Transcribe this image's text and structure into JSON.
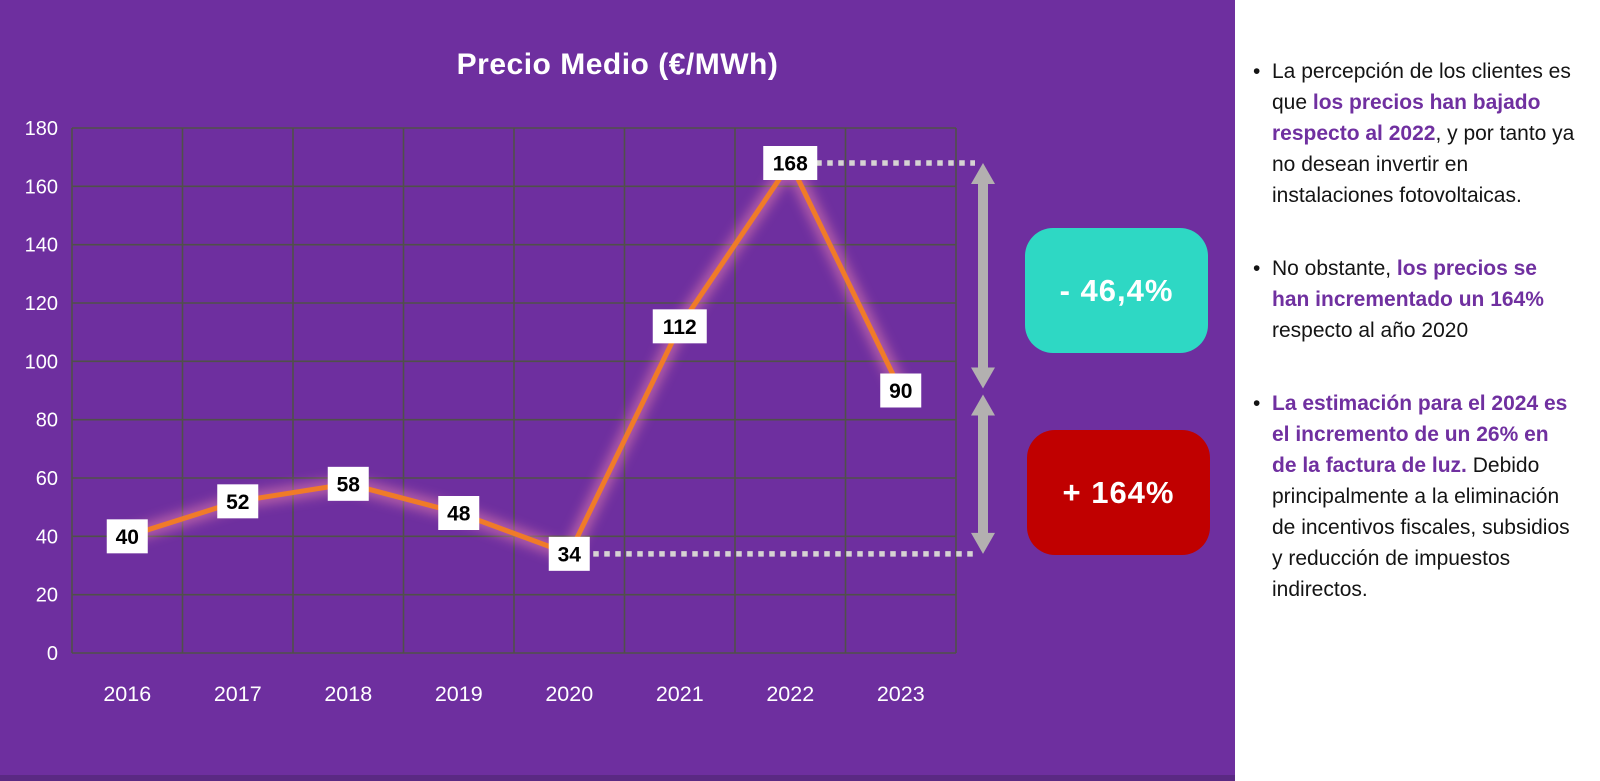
{
  "colors": {
    "slide_purple": "#6E2F9F",
    "bottom_strip": "#5A2983",
    "panel_white": "#FFFFFF",
    "grid": "#50504A",
    "axis_text": "#FFFFFF",
    "line_orange": "#F07B28",
    "line_glow": "#FF8FB0",
    "data_label_bg": "#FFFFFF",
    "data_label_text": "#000000",
    "dotted_gray": "#D6D3D3",
    "arrow_gray": "#B3B0B0",
    "callout_teal": "#2ED8C4",
    "callout_red": "#C00000",
    "accent_purple_text": "#7030A0",
    "body_text": "#141414"
  },
  "chart_data": {
    "type": "line",
    "title": "Precio Medio (€/MWh)",
    "categories": [
      "2016",
      "2017",
      "2018",
      "2019",
      "2020",
      "2021",
      "2022",
      "2023"
    ],
    "values": [
      40,
      52,
      58,
      48,
      34,
      112,
      168,
      90
    ],
    "xlabel": "",
    "ylabel": "",
    "ylim": [
      0,
      180
    ],
    "yticks": [
      0,
      20,
      40,
      60,
      80,
      100,
      120,
      140,
      160,
      180
    ],
    "grid": true,
    "legend": "none",
    "data_labels": "on, white boxes centered on points",
    "annotations": {
      "dotted_reference_levels": [
        168,
        34
      ],
      "arrows": [
        {
          "from_value": 168,
          "to_value": 90,
          "meaning": "decrease 2022 to 2023"
        },
        {
          "from_value": 90,
          "to_value": 34,
          "meaning": "increase 2020 to 2023"
        }
      ]
    }
  },
  "callouts": [
    {
      "label": "- 46,4%",
      "bg": "#2ED8C4",
      "color": "#FFFFFF"
    },
    {
      "label": "+ 164%",
      "bg": "#C00000",
      "color": "#FFFFFF"
    }
  ],
  "panel": {
    "bullet_glyph": "•",
    "bullets": [
      {
        "segments": [
          {
            "text": "La percepción de los clientes es que ",
            "style": "normal"
          },
          {
            "text": "los precios han bajado respecto al 2022",
            "style": "purple-bold"
          },
          {
            "text": ", y por tanto ya no desean invertir en instalaciones fotovoltaicas.",
            "style": "normal"
          }
        ]
      },
      {
        "segments": [
          {
            "text": "No obstante, ",
            "style": "normal"
          },
          {
            "text": "los precios se han incrementado un 164%",
            "style": "purple-bold"
          },
          {
            "text": " respecto al año 2020",
            "style": "normal"
          }
        ]
      },
      {
        "segments": [
          {
            "text": "La estimación para el 2024 es el incremento de un 26% en de la factura de luz.",
            "style": "purple-bold"
          },
          {
            "text": " Debido principalmente a la eliminación de incentivos fiscales, subsidios y reducción de impuestos indirectos.",
            "style": "normal"
          }
        ]
      }
    ]
  }
}
